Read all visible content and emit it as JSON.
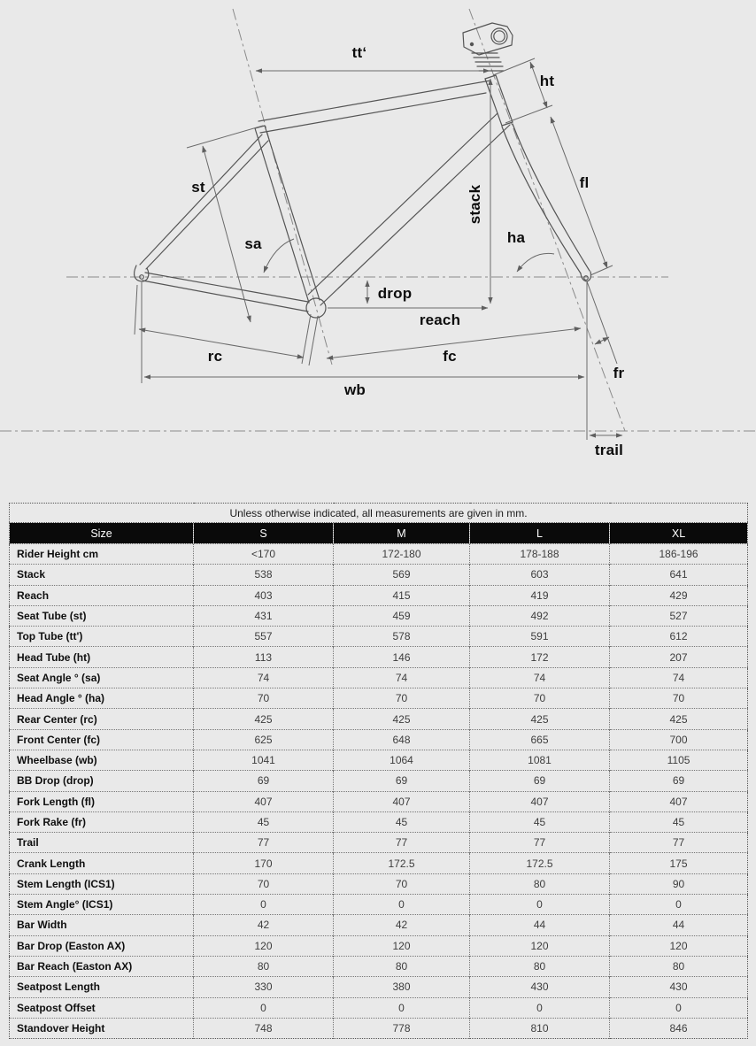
{
  "diagram": {
    "labels": {
      "tt": "tt‘",
      "ht": "ht",
      "st": "st",
      "sa": "sa",
      "stack": "stack",
      "ha": "ha",
      "fl": "fl",
      "drop": "drop",
      "reach": "reach",
      "rc": "rc",
      "fc": "fc",
      "wb": "wb",
      "fr": "fr",
      "trail": "trail"
    }
  },
  "table": {
    "note": "Unless otherwise indicated, all measurements are given in mm.",
    "columns": [
      "Size",
      "S",
      "M",
      "L",
      "XL"
    ],
    "rows": [
      {
        "label": "Rider Height cm",
        "values": [
          "<170",
          "172-180",
          "178-188",
          "186-196"
        ]
      },
      {
        "label": "Stack",
        "values": [
          "538",
          "569",
          "603",
          "641"
        ]
      },
      {
        "label": "Reach",
        "values": [
          "403",
          "415",
          "419",
          "429"
        ]
      },
      {
        "label": "Seat Tube (st)",
        "values": [
          "431",
          "459",
          "492",
          "527"
        ]
      },
      {
        "label": "Top Tube (tt')",
        "values": [
          "557",
          "578",
          "591",
          "612"
        ]
      },
      {
        "label": "Head Tube (ht)",
        "values": [
          "113",
          "146",
          "172",
          "207"
        ]
      },
      {
        "label": "Seat Angle ° (sa)",
        "values": [
          "74",
          "74",
          "74",
          "74"
        ]
      },
      {
        "label": "Head Angle ° (ha)",
        "values": [
          "70",
          "70",
          "70",
          "70"
        ]
      },
      {
        "label": "Rear Center (rc)",
        "values": [
          "425",
          "425",
          "425",
          "425"
        ]
      },
      {
        "label": "Front Center (fc)",
        "values": [
          "625",
          "648",
          "665",
          "700"
        ]
      },
      {
        "label": "Wheelbase (wb)",
        "values": [
          "1041",
          "1064",
          "1081",
          "1105"
        ]
      },
      {
        "label": "BB Drop (drop)",
        "values": [
          "69",
          "69",
          "69",
          "69"
        ]
      },
      {
        "label": "Fork Length (fl)",
        "values": [
          "407",
          "407",
          "407",
          "407"
        ]
      },
      {
        "label": "Fork Rake (fr)",
        "values": [
          "45",
          "45",
          "45",
          "45"
        ]
      },
      {
        "label": "Trail",
        "values": [
          "77",
          "77",
          "77",
          "77"
        ]
      },
      {
        "label": "Crank Length",
        "values": [
          "170",
          "172.5",
          "172.5",
          "175"
        ]
      },
      {
        "label": "Stem Length (ICS1)",
        "values": [
          "70",
          "70",
          "80",
          "90"
        ]
      },
      {
        "label": "Stem Angle° (ICS1)",
        "values": [
          "0",
          "0",
          "0",
          "0"
        ]
      },
      {
        "label": "Bar Width",
        "values": [
          "42",
          "42",
          "44",
          "44"
        ]
      },
      {
        "label": "Bar Drop (Easton AX)",
        "values": [
          "120",
          "120",
          "120",
          "120"
        ]
      },
      {
        "label": "Bar Reach (Easton AX)",
        "values": [
          "80",
          "80",
          "80",
          "80"
        ]
      },
      {
        "label": "Seatpost Length",
        "values": [
          "330",
          "380",
          "430",
          "430"
        ]
      },
      {
        "label": "Seatpost Offset",
        "values": [
          "0",
          "0",
          "0",
          "0"
        ]
      },
      {
        "label": "Standover Height",
        "values": [
          "748",
          "778",
          "810",
          "846"
        ]
      }
    ]
  }
}
